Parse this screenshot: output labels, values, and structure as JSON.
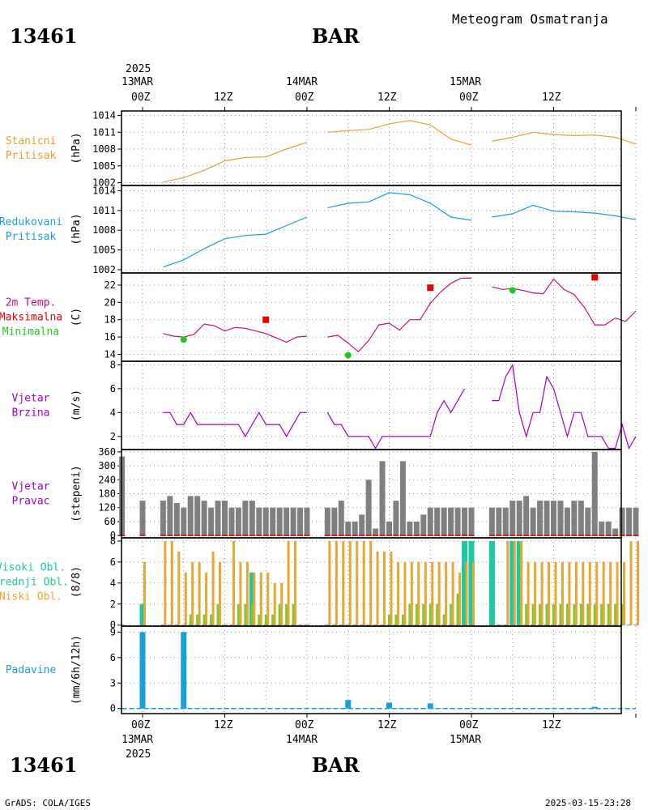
{
  "header": {
    "station_id": "13461",
    "station_name": "BAR",
    "product_title": "Meteogram Osmatranja"
  },
  "top_time_axis": {
    "start_year": "2025",
    "dates": [
      "13MAR",
      "14MAR",
      "15MAR"
    ],
    "hours": [
      "00Z",
      "12Z",
      "00Z",
      "12Z",
      "00Z",
      "12Z"
    ]
  },
  "bottom_time_axis": {
    "dates": [
      "13MAR",
      "14MAR",
      "15MAR"
    ],
    "hours": [
      "00Z",
      "12Z",
      "00Z",
      "12Z",
      "00Z",
      "12Z"
    ],
    "year": "2025"
  },
  "footer": {
    "station_id": "13461",
    "station_name": "BAR",
    "credit": "GrADS: COLA/IGES",
    "timestamp": "2025-03-15-23:28"
  },
  "colors": {
    "station_pressure": "#e6a033",
    "reduced_pressure": "#1a9fd9",
    "temperature": "#c0127c",
    "tmax": "#e60000",
    "tmin": "#1ec81e",
    "wind": "#a000c8",
    "wind_dir": "#808080",
    "high_cloud": "#1ec8a0",
    "mid_cloud": "#7ec832",
    "low_cloud": "#e6a833",
    "precip": "#1a9fd9"
  },
  "chart_data": [
    {
      "type": "line",
      "panel_label_lines": [
        "Stanicni",
        "Pritisak"
      ],
      "ylabel": "(hPa)",
      "yticks": [
        1002,
        1005,
        1008,
        1011,
        1014
      ],
      "ylim": [
        1001.5,
        1014.8
      ],
      "x_unit": "hours since 13MAR 00Z",
      "series": [
        {
          "segments": [
            {
              "x": [
                3,
                6,
                9,
                12,
                15,
                18,
                21,
                24
              ],
              "y": [
                1002.1,
                1002.9,
                1004.2,
                1005.9,
                1006.5,
                1006.6,
                1008.0,
                1009.2
              ]
            },
            {
              "x": [
                27,
                30,
                33,
                36,
                39,
                42,
                45,
                48
              ],
              "y": [
                1011.0,
                1011.3,
                1011.5,
                1012.5,
                1013.1,
                1012.3,
                1009.8,
                1008.7
              ]
            },
            {
              "x": [
                51,
                54,
                57,
                60,
                63,
                66,
                69,
                72
              ],
              "y": [
                1009.4,
                1010.1,
                1011.0,
                1010.6,
                1010.4,
                1010.5,
                1010.1,
                1008.9
              ]
            }
          ]
        }
      ]
    },
    {
      "type": "line",
      "panel_label_lines": [
        "Redukovani",
        "Pritisak"
      ],
      "ylabel": "(hPa)",
      "yticks": [
        1002,
        1005,
        1008,
        1011,
        1014
      ],
      "ylim": [
        1001.5,
        1014.8
      ],
      "x_unit": "hours since 13MAR 00Z",
      "series": [
        {
          "segments": [
            {
              "x": [
                3,
                6,
                9,
                12,
                15,
                18,
                21,
                24
              ],
              "y": [
                1002.4,
                1003.5,
                1005.2,
                1006.7,
                1007.2,
                1007.4,
                1008.7,
                1010.0
              ]
            },
            {
              "x": [
                27,
                30,
                33,
                36,
                39,
                42,
                45,
                48
              ],
              "y": [
                1011.4,
                1012.1,
                1012.3,
                1013.7,
                1013.4,
                1012.1,
                1010.0,
                1009.5
              ]
            },
            {
              "x": [
                51,
                54,
                57,
                60,
                63,
                66,
                69,
                72
              ],
              "y": [
                1010.0,
                1010.5,
                1011.8,
                1010.9,
                1010.8,
                1010.6,
                1010.2,
                1009.6
              ]
            }
          ]
        }
      ]
    },
    {
      "type": "line",
      "panel_label_lines": [
        "2m Temp.",
        "Maksimalna",
        "Minimalna"
      ],
      "ylabel": "(C)",
      "yticks": [
        14,
        16,
        18,
        20,
        22
      ],
      "ylim": [
        13.2,
        23.4
      ],
      "x_unit": "hours since 13MAR 00Z",
      "series": [
        {
          "name": "2m Temp.",
          "segments": [
            {
              "x": [
                3,
                4.5,
                6,
                7.5,
                9,
                10.5,
                12,
                13.5,
                15,
                16.5,
                18,
                19.5,
                21,
                22.5,
                24
              ],
              "y": [
                16.4,
                16.1,
                16.0,
                16.3,
                17.5,
                17.3,
                16.7,
                17.1,
                17.0,
                16.7,
                16.4,
                15.9,
                15.4,
                16.0,
                16.1
              ]
            },
            {
              "x": [
                27,
                28.5,
                30,
                31.5,
                33,
                34.5,
                36,
                37.5,
                39,
                40.5,
                42,
                43.5,
                45,
                46.5,
                48
              ],
              "y": [
                16.0,
                16.2,
                15.3,
                14.3,
                15.6,
                17.4,
                17.6,
                16.8,
                18.0,
                18.0,
                19.9,
                21.2,
                22.2,
                22.8,
                22.8
              ]
            },
            {
              "x": [
                51,
                52.5,
                54,
                55.5,
                57,
                58.5,
                60,
                61.5,
                63,
                64.5,
                66,
                67.5,
                69,
                70.5,
                72
              ],
              "y": [
                21.8,
                21.5,
                21.6,
                21.4,
                21.1,
                21.0,
                22.7,
                21.5,
                20.9,
                19.4,
                17.4,
                17.4,
                18.2,
                17.8,
                19.0
              ]
            }
          ]
        }
      ],
      "points": [
        {
          "name": "Maksimalna",
          "x": [
            18,
            42,
            66
          ],
          "y": [
            18.0,
            21.7,
            22.9
          ]
        },
        {
          "name": "Minimalna",
          "x": [
            6,
            30,
            54
          ],
          "y": [
            15.7,
            13.9,
            21.4
          ]
        }
      ]
    },
    {
      "type": "line",
      "panel_label_lines": [
        "Vjetar",
        "Brzina"
      ],
      "ylabel": "(m/s)",
      "yticks": [
        2,
        4,
        6,
        8
      ],
      "ylim": [
        0.9,
        8.3
      ],
      "x_unit": "hours since 13MAR 00Z",
      "series": [
        {
          "segments": [
            {
              "x": [
                3,
                4,
                5,
                6,
                7,
                8,
                9,
                10,
                11,
                12,
                13,
                14,
                15,
                16,
                17,
                18,
                19,
                20,
                21,
                22,
                23,
                24
              ],
              "y": [
                4,
                4,
                3,
                3,
                4,
                3,
                3,
                3,
                3,
                3,
                3,
                3,
                2,
                3,
                4,
                3,
                3,
                3,
                2,
                3,
                4,
                4
              ]
            },
            {
              "x": [
                27,
                28,
                29,
                30,
                31,
                32,
                33,
                34,
                35,
                36,
                37,
                38,
                39,
                40,
                41,
                42,
                43,
                44,
                45,
                46,
                47
              ],
              "y": [
                4,
                3,
                3,
                2,
                2,
                2,
                2,
                1,
                2,
                2,
                2,
                2,
                2,
                2,
                2,
                2,
                4,
                5,
                4,
                5,
                6
              ]
            },
            {
              "x": [
                51,
                52,
                53,
                54,
                55,
                56,
                57,
                58,
                59,
                60,
                61,
                62,
                63,
                64,
                65,
                66,
                67,
                68,
                69,
                70,
                71,
                72
              ],
              "y": [
                5,
                5,
                7,
                8,
                4,
                2,
                4,
                4,
                7,
                6,
                4,
                2,
                4,
                4,
                2,
                2,
                2,
                1,
                1,
                3,
                1,
                2
              ]
            }
          ]
        }
      ]
    },
    {
      "type": "bar",
      "panel_label_lines": [
        "Vjetar",
        "Pravac"
      ],
      "ylabel": "(stepeni)",
      "yticks": [
        0,
        60,
        120,
        180,
        240,
        300,
        360
      ],
      "ylim": [
        -10,
        370
      ],
      "x_unit": "hours since 13MAR 00Z",
      "x": [
        -3,
        0,
        3,
        4,
        5,
        6,
        7,
        8,
        9,
        10,
        11,
        12,
        13,
        14,
        15,
        16,
        17,
        18,
        19,
        20,
        21,
        22,
        23,
        24,
        27,
        28,
        29,
        30,
        31,
        32,
        33,
        34,
        35,
        36,
        37,
        38,
        39,
        40,
        41,
        42,
        43,
        44,
        45,
        46,
        47,
        48,
        51,
        52,
        53,
        54,
        55,
        56,
        57,
        58,
        59,
        60,
        61,
        62,
        63,
        64,
        65,
        66,
        67,
        68,
        69,
        70,
        71,
        72
      ],
      "values": [
        340,
        150,
        150,
        170,
        140,
        120,
        170,
        170,
        150,
        120,
        150,
        150,
        120,
        120,
        150,
        150,
        120,
        120,
        120,
        120,
        120,
        120,
        120,
        120,
        120,
        120,
        150,
        60,
        60,
        90,
        240,
        30,
        320,
        60,
        150,
        320,
        60,
        60,
        90,
        120,
        120,
        120,
        120,
        120,
        120,
        120,
        120,
        120,
        120,
        150,
        150,
        170,
        120,
        150,
        150,
        150,
        150,
        120,
        150,
        150,
        120,
        360,
        60,
        60,
        30,
        120,
        120,
        120
      ]
    },
    {
      "type": "bar",
      "panel_label_lines": [
        "Visoki Obl.",
        "Srednji Obl.",
        "Niski Obl."
      ],
      "ylabel": "(8/8)",
      "yticks": [
        0,
        2,
        4,
        6,
        8
      ],
      "ylim": [
        -0.1,
        8.3
      ],
      "x_unit": "hours since 13MAR 00Z",
      "x": [
        -3,
        0,
        3,
        4,
        5,
        6,
        7,
        8,
        9,
        10,
        11,
        12,
        13,
        14,
        15,
        16,
        17,
        18,
        19,
        20,
        21,
        22,
        23,
        24,
        27,
        28,
        29,
        30,
        31,
        32,
        33,
        34,
        35,
        36,
        37,
        38,
        39,
        40,
        41,
        42,
        43,
        44,
        45,
        46,
        47,
        48,
        51,
        52,
        53,
        54,
        55,
        56,
        57,
        58,
        59,
        60,
        61,
        62,
        63,
        64,
        65,
        66,
        67,
        68,
        69,
        70,
        71,
        72
      ],
      "series": [
        {
          "name": "Visoki Obl.",
          "values": [
            0,
            2,
            0,
            0,
            0,
            0,
            0,
            0,
            0,
            0,
            0,
            0,
            0,
            0,
            0,
            5,
            0,
            0,
            0,
            0,
            0,
            0,
            0,
            0,
            0,
            0,
            0,
            0,
            0,
            0,
            0,
            0,
            0,
            0,
            0,
            0,
            0,
            0,
            0,
            0,
            0,
            0,
            0,
            0,
            8,
            8,
            8,
            0,
            0,
            8,
            8,
            0,
            0,
            0,
            0,
            0,
            0,
            0,
            0,
            0,
            0,
            0,
            0,
            0,
            0,
            0,
            0,
            0
          ]
        },
        {
          "name": "Srednji Obl.",
          "values": [
            0,
            0,
            0,
            0,
            0,
            0,
            1,
            1,
            1,
            1,
            2,
            0,
            0,
            2,
            2,
            2,
            1,
            1,
            1,
            2,
            2,
            2,
            0,
            0,
            0,
            0,
            0,
            0,
            0,
            0,
            0,
            0,
            0,
            1,
            1,
            1,
            2,
            2,
            2,
            2,
            2,
            1,
            2,
            3,
            0,
            0,
            0,
            0,
            0,
            0,
            0,
            2,
            2,
            2,
            2,
            2,
            2,
            2,
            2,
            2,
            2,
            2,
            2,
            2,
            2,
            2,
            0,
            0
          ]
        },
        {
          "name": "Niski Obl.",
          "values": [
            0,
            6,
            8,
            8,
            7,
            5,
            6,
            6,
            5,
            7,
            6,
            0,
            8,
            6,
            6,
            5,
            5,
            5,
            4,
            4,
            8,
            8,
            0,
            0,
            8,
            8,
            8,
            8,
            8,
            8,
            8,
            7,
            7,
            7,
            6,
            6,
            6,
            6,
            6,
            6,
            6,
            6,
            6,
            5,
            6,
            6,
            0,
            0,
            8,
            8,
            8,
            6,
            6,
            6,
            6,
            6,
            6,
            6,
            6,
            6,
            6,
            6,
            6,
            6,
            6,
            6,
            8,
            8
          ]
        }
      ]
    },
    {
      "type": "bar",
      "panel_label_lines": [
        "Padavine"
      ],
      "ylabel": "(mm/6h/12h)",
      "yticks": [
        0,
        3,
        6,
        9
      ],
      "ylim": [
        -0.6,
        9.7
      ],
      "x_unit": "hours since 13MAR 00Z",
      "x": [
        0,
        6,
        30,
        36,
        42,
        66
      ],
      "values": [
        9,
        9,
        1.0,
        0.7,
        0.6,
        0.2
      ]
    }
  ]
}
